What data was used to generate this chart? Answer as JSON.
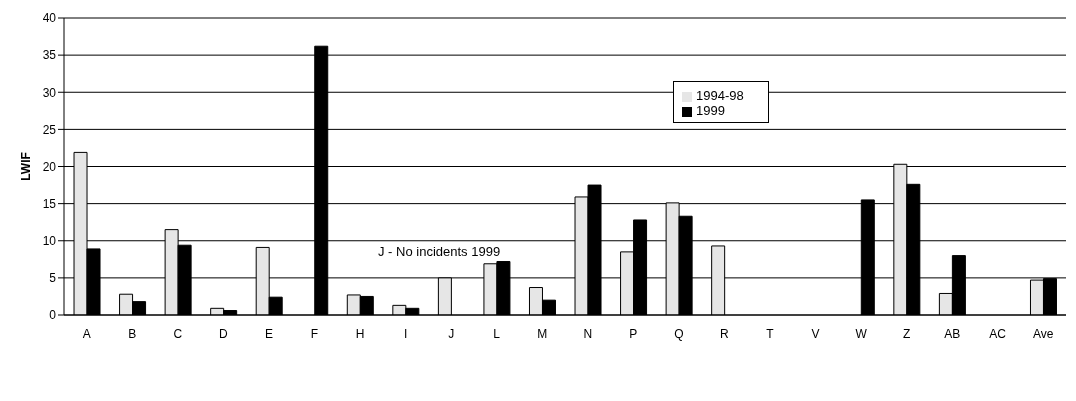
{
  "chart_data": {
    "type": "bar",
    "ylabel": "LWIF",
    "categories": [
      "A",
      "B",
      "C",
      "D",
      "E",
      "F",
      "H",
      "I",
      "J",
      "L",
      "M",
      "N",
      "P",
      "Q",
      "R",
      "T",
      "V",
      "W",
      "Z",
      "AB",
      "AC",
      "Ave"
    ],
    "series": [
      {
        "name": "1994-98",
        "color": "#e6e6e6",
        "values": [
          21.9,
          2.8,
          11.5,
          0.9,
          9.1,
          null,
          2.7,
          1.3,
          5.0,
          6.9,
          3.7,
          15.9,
          8.5,
          15.1,
          9.3,
          null,
          null,
          null,
          20.3,
          2.9,
          null,
          4.7
        ]
      },
      {
        "name": "1999",
        "color": "#000000",
        "values": [
          8.9,
          1.8,
          9.4,
          0.6,
          2.4,
          36.2,
          2.5,
          0.9,
          null,
          7.2,
          2.0,
          17.5,
          12.8,
          13.3,
          null,
          null,
          null,
          15.5,
          17.6,
          8.0,
          null,
          4.9
        ]
      }
    ],
    "ylim": [
      0,
      40
    ],
    "yticks": [
      0,
      5,
      10,
      15,
      20,
      25,
      30,
      35,
      40
    ],
    "grid": "y",
    "legend": "top right",
    "annotations": [
      "J - No incidents 1999"
    ]
  }
}
